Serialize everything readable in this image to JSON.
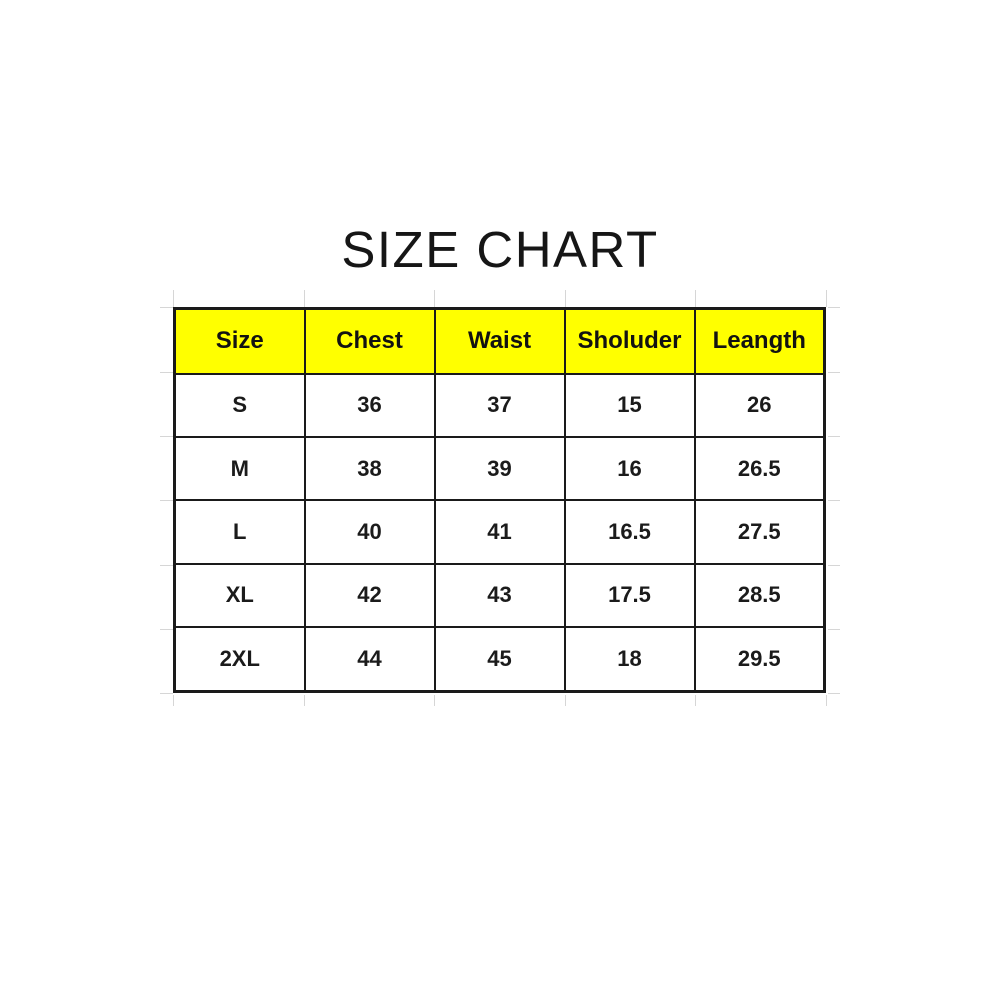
{
  "page_title": "SIZE CHART",
  "chart_data": {
    "type": "table",
    "title": "SIZE CHART",
    "columns": [
      "Size",
      "Chest",
      "Waist",
      "Sholuder",
      "Leangth"
    ],
    "rows": [
      [
        "S",
        "36",
        "37",
        "15",
        "26"
      ],
      [
        "M",
        "38",
        "39",
        "16",
        "26.5"
      ],
      [
        "L",
        "40",
        "41",
        "16.5",
        "27.5"
      ],
      [
        "XL",
        "42",
        "43",
        "17.5",
        "28.5"
      ],
      [
        "2XL",
        "44",
        "45",
        "18",
        "29.5"
      ]
    ],
    "legend": "none",
    "grid_on": true
  },
  "colors": {
    "header_background": "#FFFF00",
    "table_border": "#1A1A1A",
    "text": "#1B1B1B",
    "faint_gridline": "#D6D6D6",
    "page_background": "#FFFFFF"
  }
}
